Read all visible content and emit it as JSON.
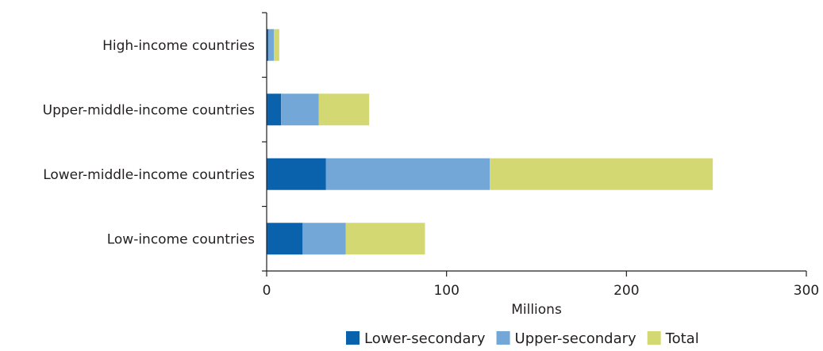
{
  "chart_data": {
    "type": "bar",
    "orientation": "horizontal",
    "stacked": true,
    "categories": [
      "High-income countries",
      "Upper-middle-income countries",
      "Lower-middle-income countries",
      "Low-income countries"
    ],
    "series": [
      {
        "name": "Lower-secondary",
        "color": "#0a62ac",
        "values": [
          1,
          8,
          33,
          20
        ]
      },
      {
        "name": "Upper-secondary",
        "color": "#73a7d8",
        "values": [
          3,
          21,
          91,
          24
        ]
      },
      {
        "name": "Total",
        "color": "#d3d873",
        "values": [
          3,
          28,
          124,
          44
        ]
      }
    ],
    "xlabel": "Millions",
    "ylabel": "",
    "xlim": [
      0,
      300
    ],
    "xticks": [
      0,
      100,
      200,
      300
    ],
    "grid": false,
    "legend_position": "bottom-right"
  }
}
